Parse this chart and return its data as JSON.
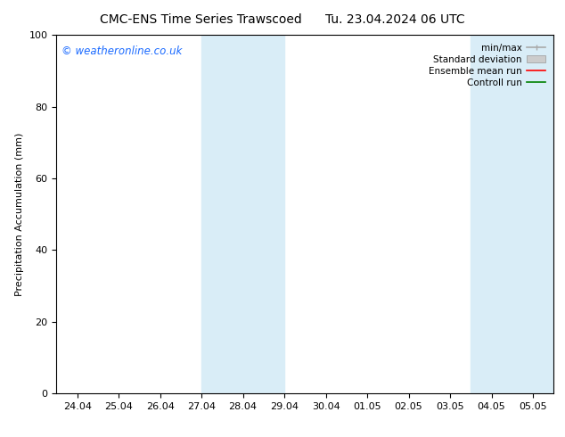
{
  "title_left": "CMC-ENS Time Series Trawscoed",
  "title_right": "Tu. 23.04.2024 06 UTC",
  "ylabel": "Precipitation Accumulation (mm)",
  "ylim": [
    0,
    100
  ],
  "yticks": [
    0,
    20,
    40,
    60,
    80,
    100
  ],
  "x_tick_labels": [
    "24.04",
    "25.04",
    "26.04",
    "27.04",
    "28.04",
    "29.04",
    "30.04",
    "01.05",
    "02.05",
    "03.05",
    "04.05",
    "05.05"
  ],
  "x_tick_positions": [
    0,
    1,
    2,
    3,
    4,
    5,
    6,
    7,
    8,
    9,
    10,
    11
  ],
  "xlim": [
    -0.5,
    11.5
  ],
  "shaded_regions": [
    {
      "xmin": 3.0,
      "xmax": 5.0,
      "color": "#d9edf7"
    },
    {
      "xmin": 9.5,
      "xmax": 11.5,
      "color": "#d9edf7"
    }
  ],
  "watermark_text": "© weatheronline.co.uk",
  "watermark_color": "#1a6aff",
  "legend_entries": [
    {
      "label": "min/max",
      "color": "#aaaaaa",
      "lw": 1.2,
      "style": "minmax"
    },
    {
      "label": "Standard deviation",
      "color": "#cccccc",
      "lw": 5,
      "style": "band"
    },
    {
      "label": "Ensemble mean run",
      "color": "red",
      "lw": 1.2,
      "style": "line"
    },
    {
      "label": "Controll run",
      "color": "green",
      "lw": 1.2,
      "style": "line"
    }
  ],
  "bg_color": "#ffffff",
  "title_fontsize": 10,
  "label_fontsize": 8,
  "tick_fontsize": 8,
  "legend_fontsize": 7.5
}
